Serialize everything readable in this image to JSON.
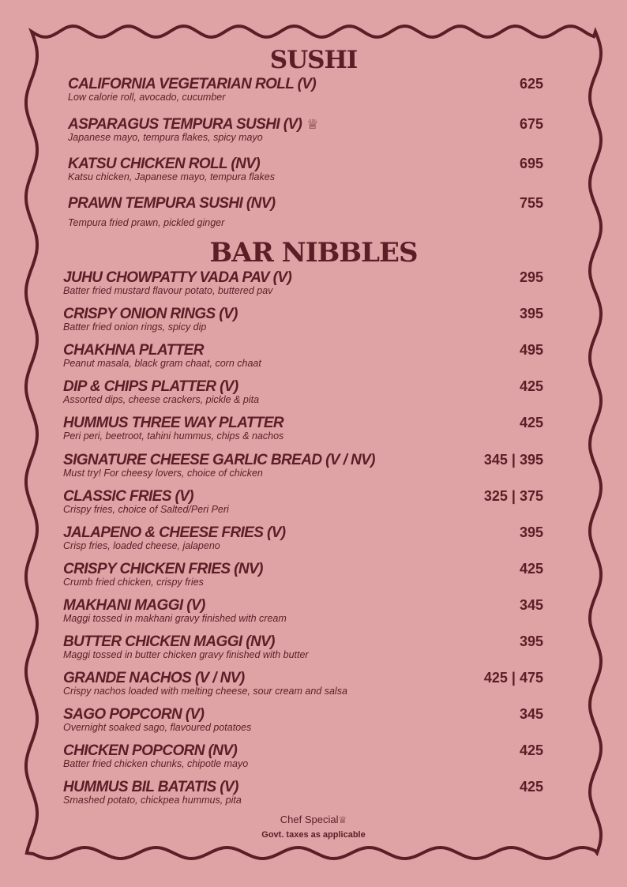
{
  "sections": [
    {
      "title": "SUSHI",
      "items": [
        {
          "name": "CALIFORNIA VEGETARIAN ROLL (V)",
          "desc": "Low calorie roll, avocado, cucumber",
          "price": "625",
          "chef": false
        },
        {
          "name": "ASPARAGUS TEMPURA SUSHI (V)",
          "desc": "Japanese mayo, tempura flakes, spicy mayo",
          "price": "675",
          "chef": true
        },
        {
          "name": "KATSU CHICKEN ROLL (NV)",
          "desc": "Katsu chicken, Japanese mayo, tempura flakes",
          "price": "695",
          "chef": false
        },
        {
          "name": "PRAWN TEMPURA SUSHI (NV)",
          "desc": "Tempura fried prawn, pickled ginger",
          "price": "755",
          "chef": false
        }
      ]
    },
    {
      "title": "BAR NIBBLES",
      "items": [
        {
          "name": "JUHU CHOWPATTY VADA PAV (V)",
          "desc": "Batter fried mustard flavour potato, buttered pav",
          "price": "295"
        },
        {
          "name": "CRISPY ONION RINGS (V)",
          "desc": "Batter fried onion rings, spicy dip",
          "price": "395"
        },
        {
          "name": "CHAKHNA PLATTER",
          "desc": "Peanut masala, black gram chaat, corn chaat",
          "price": "495"
        },
        {
          "name": "DIP & CHIPS PLATTER (V)",
          "desc": "Assorted dips, cheese crackers, pickle & pita",
          "price": "425"
        },
        {
          "name": "HUMMUS THREE WAY PLATTER",
          "desc": "Peri peri, beetroot, tahini hummus, chips & nachos",
          "price": "425"
        },
        {
          "name": "SIGNATURE CHEESE GARLIC BREAD (V / NV)",
          "desc": "Must try! For cheesy lovers, choice of chicken",
          "price": "345 | 395"
        },
        {
          "name": "CLASSIC FRIES (V)",
          "desc": "Crispy fries, choice of Salted/Peri Peri",
          "price": "325 | 375"
        },
        {
          "name": "JALAPENO & CHEESE FRIES (V)",
          "desc": "Crisp fries, loaded cheese, jalapeno",
          "price": "395"
        },
        {
          "name": "CRISPY CHICKEN FRIES (NV)",
          "desc": "Crumb fried chicken, crispy fries",
          "price": "425"
        },
        {
          "name": "MAKHANI MAGGI (V)",
          "desc": "Maggi tossed in makhani gravy finished with cream",
          "price": "345"
        },
        {
          "name": "BUTTER CHICKEN MAGGI (NV)",
          "desc": "Maggi tossed in butter chicken gravy finished with butter",
          "price": "395"
        },
        {
          "name": "GRANDE NACHOS (V / NV)",
          "desc": "Crispy nachos loaded with melting cheese, sour cream and salsa",
          "price": "425 | 475"
        },
        {
          "name": "SAGO POPCORN (V)",
          "desc": "Overnight soaked sago, flavoured potatoes",
          "price": "345"
        },
        {
          "name": "CHICKEN POPCORN (NV)",
          "desc": "Batter fried chicken chunks, chipotle mayo",
          "price": "425"
        },
        {
          "name": "HUMMUS BIL BATATIS (V)",
          "desc": "Smashed potato, chickpea hummus, pita",
          "price": "425"
        }
      ]
    }
  ],
  "footer": {
    "chef_special": "Chef Special",
    "taxes": "Govt. taxes as applicable"
  },
  "icons": {
    "chef": "chef-hat-icon"
  },
  "colors": {
    "paper": "#dfa3a5",
    "ink": "#5b1d26"
  }
}
